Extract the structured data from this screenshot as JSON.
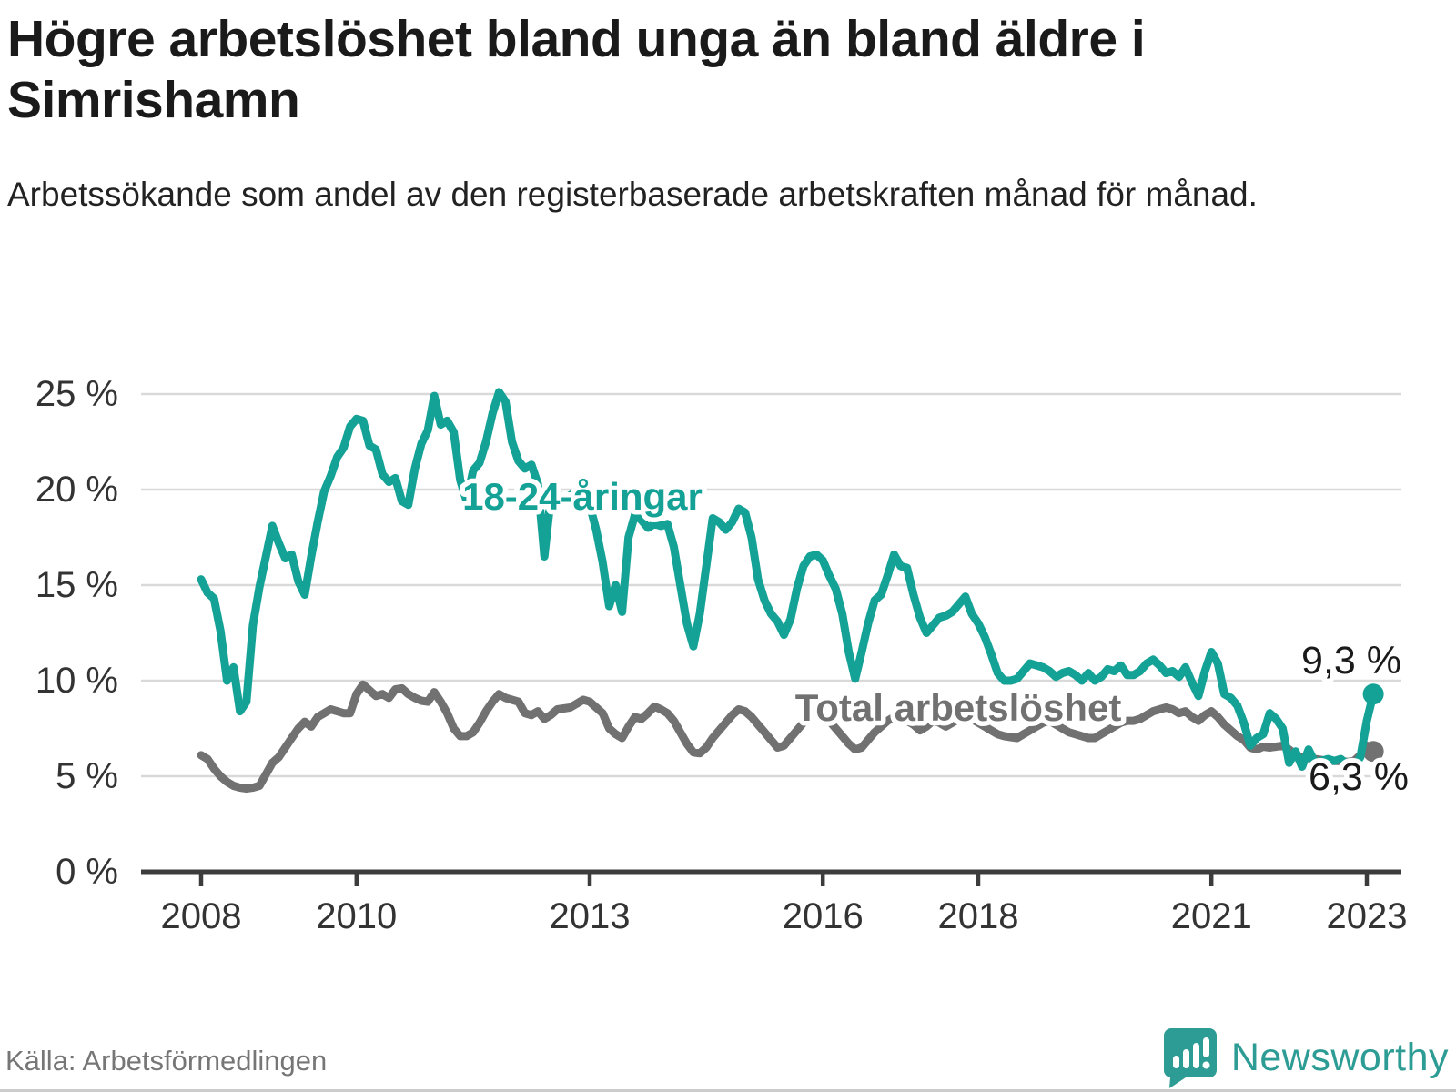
{
  "title": "Högre arbetslöshet bland unga än bland äldre i Simrishamn",
  "subtitle": "Arbetssökande som andel av den registerbaserade arbetskraften månad för månad.",
  "source": "Källa: Arbetsförmedlingen",
  "brand": "Newsworthy",
  "colors": {
    "youth_line": "#15a296",
    "total_line": "#717171",
    "grid": "#d9d9d9",
    "axis": "#3c3c3c",
    "tick_label": "#333333",
    "end_label": "#1a1a1a",
    "logo": "#2d9c94"
  },
  "chart_data": {
    "type": "line",
    "title": "Högre arbetslöshet bland unga än bland äldre i Simrishamn",
    "subtitle": "Arbetssökande som andel av den registerbaserade arbetskraften månad för månad.",
    "x_start": "2008-01",
    "x_end": "2023-02",
    "interval": "monthly",
    "xlim": [
      2008,
      2023.17
    ],
    "ylim": [
      0,
      25
    ],
    "grid": "horizontal",
    "legend_position": "inline-labels",
    "x_tick_years": [
      2008,
      2010,
      2013,
      2016,
      2018,
      2021,
      2023
    ],
    "y_ticks": [
      0,
      5,
      10,
      15,
      20,
      25
    ],
    "y_tick_labels": [
      "0 %",
      "5 %",
      "10 %",
      "15 %",
      "20 %",
      "25 %"
    ],
    "series": [
      {
        "name": "Total arbetslöshet",
        "end_label": "6,3 %",
        "end_value": 6.3,
        "values": [
          6.1,
          5.9,
          5.4,
          5.0,
          4.7,
          4.5,
          4.4,
          4.35,
          4.4,
          4.5,
          5.1,
          5.7,
          6.0,
          6.5,
          7.0,
          7.5,
          7.85,
          7.6,
          8.1,
          8.3,
          8.5,
          8.4,
          8.3,
          8.3,
          9.3,
          9.8,
          9.5,
          9.2,
          9.3,
          9.1,
          9.55,
          9.6,
          9.3,
          9.1,
          8.95,
          8.9,
          9.4,
          8.9,
          8.3,
          7.5,
          7.1,
          7.1,
          7.3,
          7.8,
          8.4,
          8.9,
          9.3,
          9.1,
          9.0,
          8.9,
          8.3,
          8.2,
          8.4,
          8.0,
          8.2,
          8.5,
          8.55,
          8.6,
          8.8,
          9.0,
          8.9,
          8.6,
          8.3,
          7.5,
          7.2,
          7.0,
          7.6,
          8.1,
          8.0,
          8.3,
          8.65,
          8.5,
          8.3,
          7.9,
          7.3,
          6.7,
          6.25,
          6.2,
          6.5,
          7.0,
          7.4,
          7.8,
          8.2,
          8.5,
          8.4,
          8.1,
          7.7,
          7.3,
          6.9,
          6.5,
          6.6,
          7.0,
          7.4,
          7.8,
          8.1,
          8.3,
          8.2,
          7.9,
          7.5,
          7.1,
          6.7,
          6.4,
          6.5,
          6.9,
          7.3,
          7.6,
          7.9,
          8.1,
          8.0,
          7.9,
          7.7,
          7.4,
          7.6,
          7.9,
          7.8,
          7.6,
          7.8,
          8.0,
          8.1,
          8.0,
          7.8,
          7.6,
          7.4,
          7.2,
          7.1,
          7.05,
          7.0,
          7.2,
          7.4,
          7.6,
          7.8,
          7.9,
          7.7,
          7.5,
          7.3,
          7.2,
          7.1,
          7.0,
          7.0,
          7.2,
          7.4,
          7.6,
          7.8,
          7.9,
          7.9,
          8.0,
          8.2,
          8.4,
          8.5,
          8.6,
          8.5,
          8.3,
          8.4,
          8.1,
          7.9,
          8.2,
          8.4,
          8.1,
          7.7,
          7.4,
          7.1,
          6.9,
          6.5,
          6.4,
          6.55,
          6.5,
          6.55,
          6.6,
          6.4,
          6.1,
          6.0,
          5.95,
          5.9,
          5.85,
          5.8,
          5.8,
          5.8,
          5.75,
          5.8,
          6.1,
          6.6,
          6.3
        ]
      },
      {
        "name": "18-24-åringar",
        "end_label": "9,3 %",
        "end_value": 9.3,
        "values": [
          15.3,
          14.6,
          14.3,
          12.6,
          10.0,
          10.7,
          8.4,
          8.9,
          12.9,
          14.9,
          16.5,
          18.1,
          17.2,
          16.4,
          16.6,
          15.2,
          14.5,
          16.5,
          18.3,
          19.9,
          20.7,
          21.7,
          22.2,
          23.3,
          23.7,
          23.6,
          22.3,
          22.1,
          20.8,
          20.4,
          20.6,
          19.4,
          19.2,
          21.1,
          22.4,
          23.1,
          24.9,
          23.4,
          23.6,
          23.0,
          20.5,
          19.4,
          21.0,
          21.4,
          22.5,
          24.0,
          25.1,
          24.6,
          22.5,
          21.5,
          21.1,
          21.3,
          20.3,
          16.5,
          19.6,
          19.8,
          19.5,
          19.7,
          19.9,
          20.1,
          19.2,
          17.9,
          16.2,
          13.9,
          15.0,
          13.6,
          17.5,
          18.7,
          18.4,
          18.0,
          18.2,
          18.1,
          18.2,
          17.0,
          15.0,
          13.0,
          11.8,
          13.5,
          16.0,
          18.5,
          18.3,
          17.9,
          18.3,
          19.0,
          18.8,
          17.5,
          15.3,
          14.2,
          13.5,
          13.1,
          12.4,
          13.2,
          14.8,
          16.0,
          16.5,
          16.6,
          16.3,
          15.5,
          14.8,
          13.5,
          11.5,
          10.1,
          11.5,
          13.0,
          14.2,
          14.5,
          15.5,
          16.6,
          16.0,
          15.9,
          14.5,
          13.3,
          12.5,
          12.9,
          13.3,
          13.4,
          13.6,
          14.0,
          14.4,
          13.5,
          13.0,
          12.3,
          11.4,
          10.4,
          10.0,
          10.0,
          10.1,
          10.5,
          10.9,
          10.8,
          10.7,
          10.5,
          10.2,
          10.4,
          10.5,
          10.3,
          10.0,
          10.4,
          10.0,
          10.2,
          10.6,
          10.5,
          10.8,
          10.3,
          10.3,
          10.5,
          10.9,
          11.1,
          10.8,
          10.4,
          10.5,
          10.2,
          10.7,
          9.9,
          9.2,
          10.5,
          11.5,
          10.9,
          9.3,
          9.1,
          8.7,
          7.8,
          6.6,
          7.0,
          7.2,
          8.3,
          8.0,
          7.5,
          5.7,
          6.3,
          5.5,
          6.4,
          5.7,
          5.8,
          5.9,
          5.8,
          5.9,
          5.6,
          5.5,
          6.0,
          7.9,
          9.3
        ]
      }
    ]
  }
}
